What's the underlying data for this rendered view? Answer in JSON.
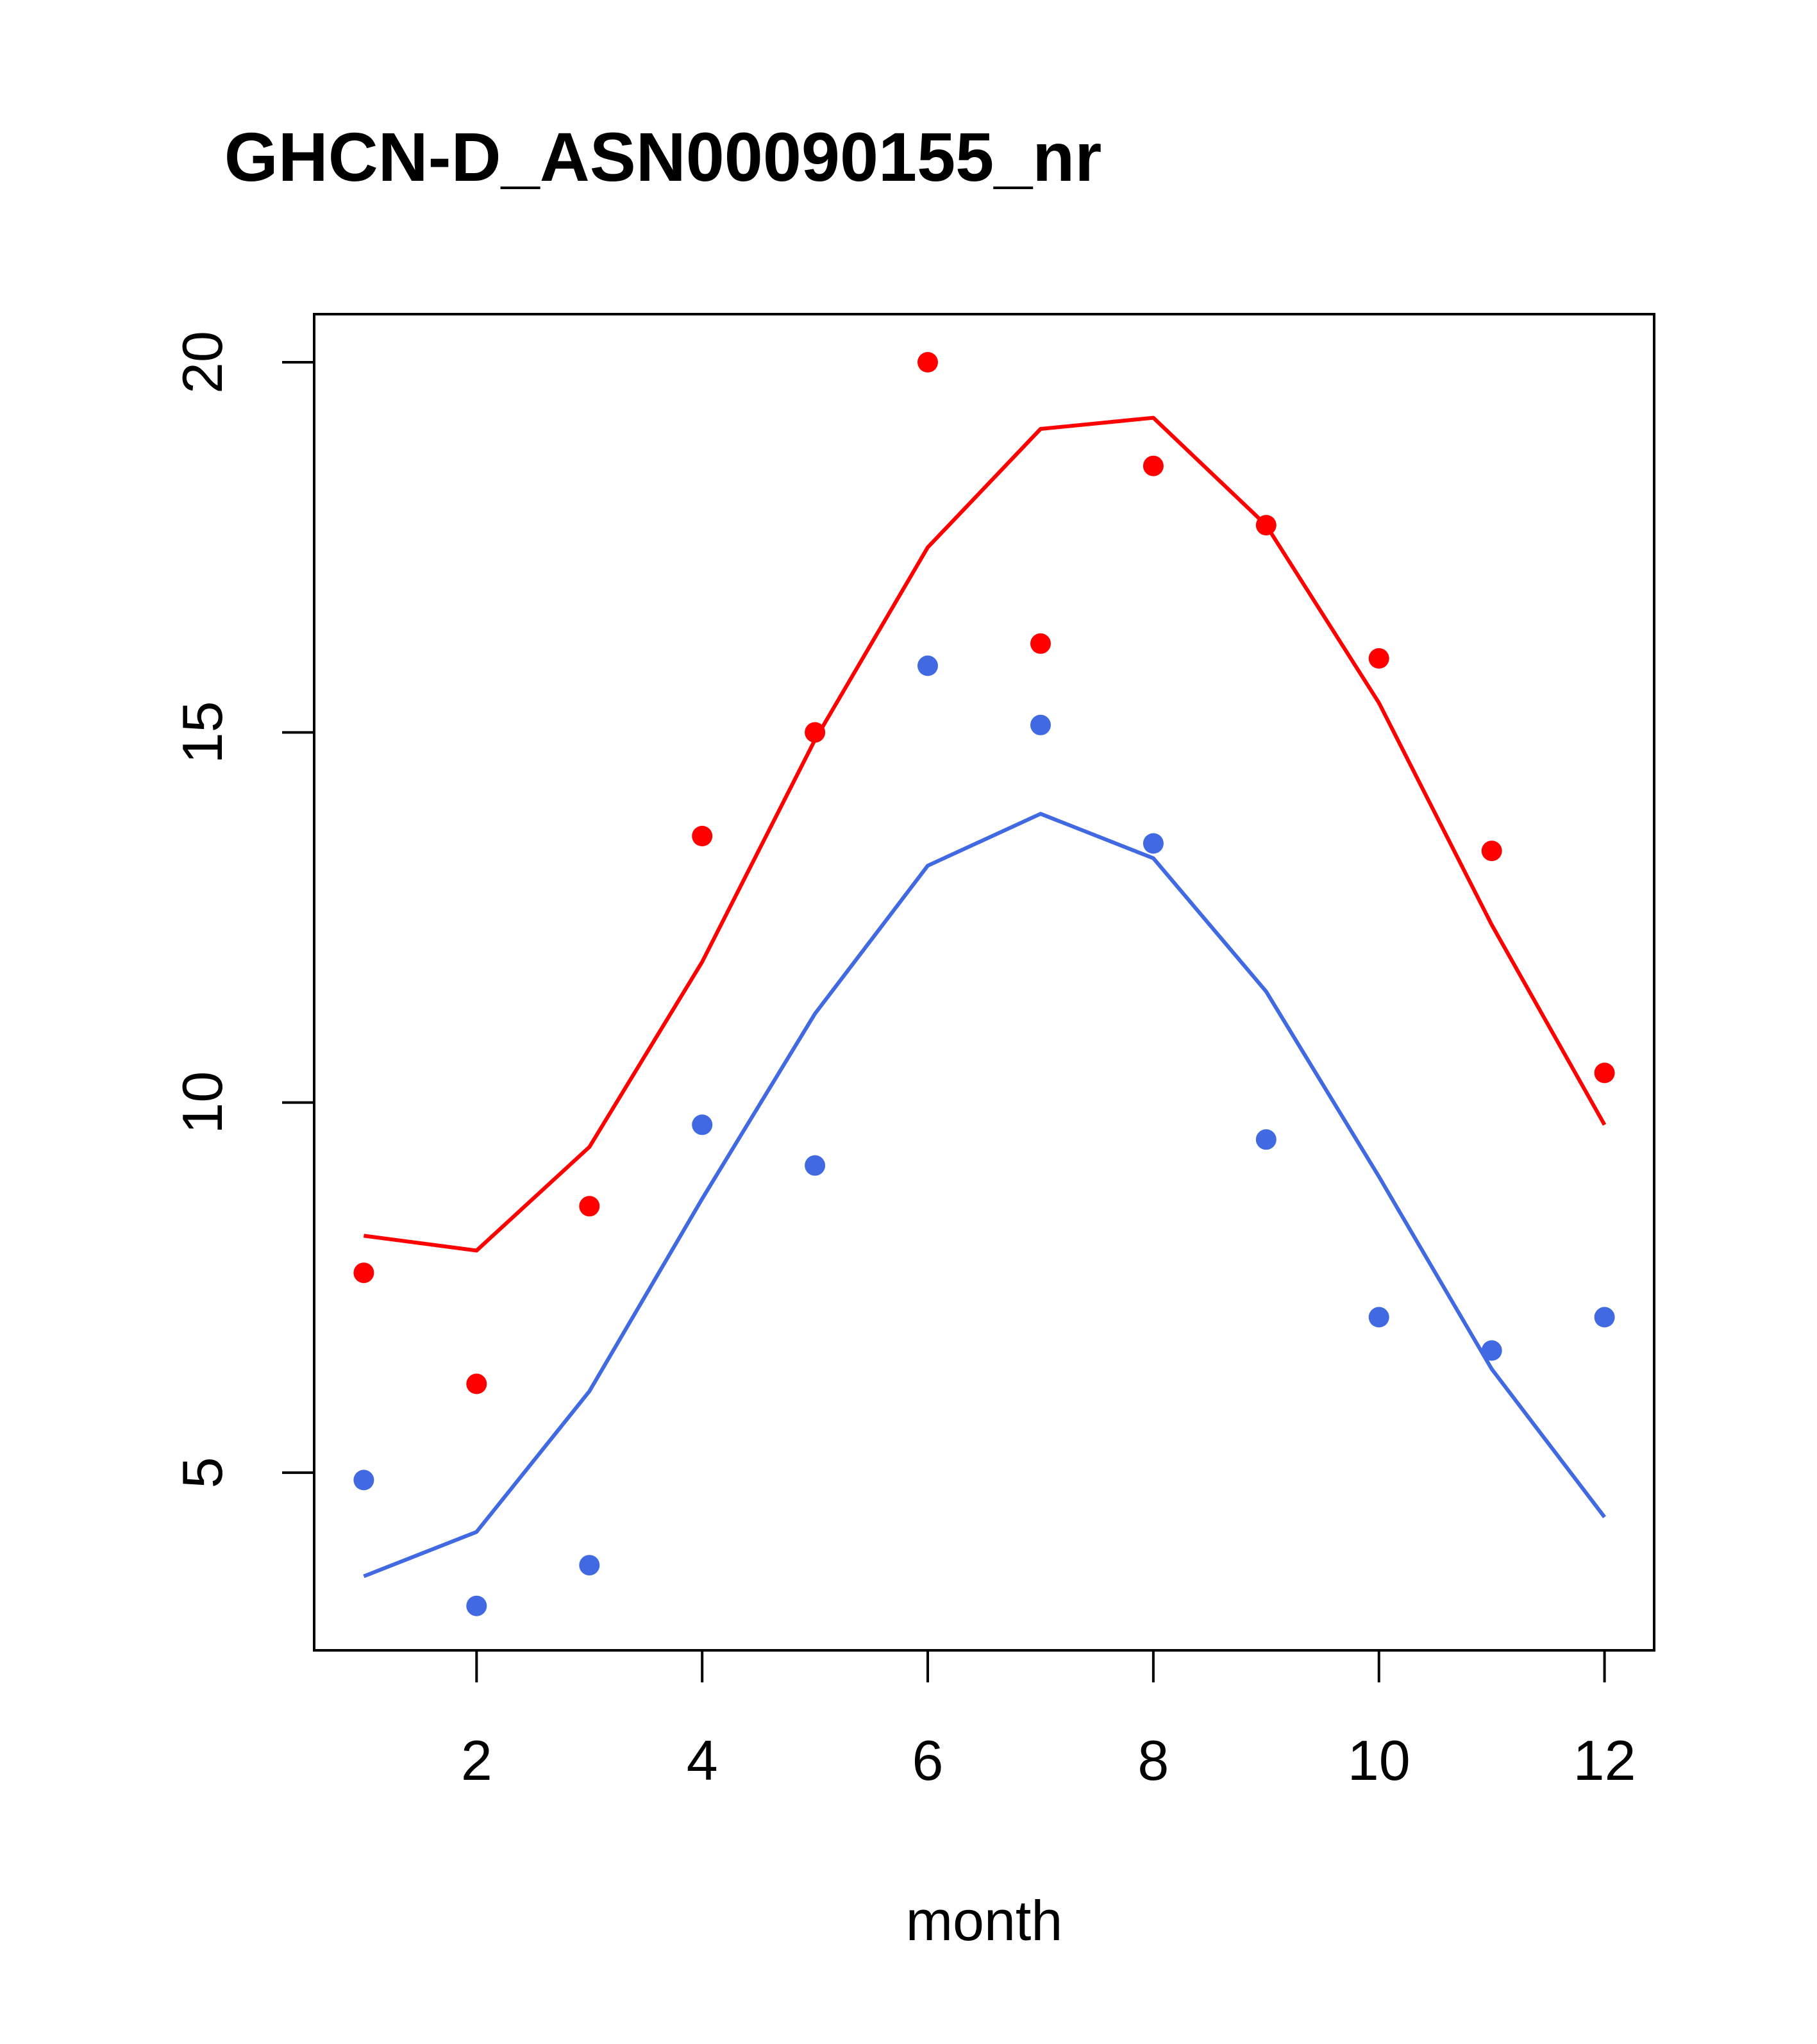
{
  "chart_data": {
    "type": "line",
    "title": "GHCN-D_ASN00090155_nr",
    "xlabel": "month",
    "ylabel": "",
    "xlim": [
      0.56,
      12.44
    ],
    "ylim": [
      2.6,
      20.65
    ],
    "x_ticks": [
      2,
      4,
      6,
      8,
      10,
      12
    ],
    "y_ticks": [
      5,
      10,
      15,
      20
    ],
    "grid": false,
    "legend": "none",
    "series": [
      {
        "color": "#ff0000",
        "style": "line",
        "x": [
          1,
          2,
          3,
          4,
          5,
          6,
          7,
          8,
          9,
          10,
          11,
          12
        ],
        "values": [
          8.2,
          8.0,
          9.4,
          11.9,
          14.9,
          17.5,
          19.1,
          19.25,
          17.8,
          15.4,
          12.4,
          9.7
        ]
      },
      {
        "color": "#ff0000",
        "style": "points",
        "x": [
          1,
          2,
          3,
          4,
          5,
          6,
          7,
          8,
          9,
          10,
          11,
          12
        ],
        "values": [
          7.7,
          6.2,
          8.6,
          13.6,
          15.0,
          20.0,
          16.2,
          18.6,
          17.8,
          16.0,
          13.4,
          10.4
        ]
      },
      {
        "color": "#4169e1",
        "style": "line",
        "x": [
          1,
          2,
          3,
          4,
          5,
          6,
          7,
          8,
          9,
          10,
          11,
          12
        ],
        "values": [
          3.6,
          4.2,
          6.1,
          8.7,
          11.2,
          13.2,
          13.9,
          13.3,
          11.5,
          9.0,
          6.4,
          4.4
        ]
      },
      {
        "color": "#4169e1",
        "style": "points",
        "x": [
          1,
          2,
          3,
          4,
          5,
          6,
          7,
          8,
          9,
          10,
          11,
          12
        ],
        "values": [
          4.9,
          3.2,
          3.75,
          9.7,
          9.15,
          15.9,
          15.1,
          13.5,
          9.5,
          7.1,
          6.65,
          7.1
        ]
      }
    ]
  }
}
